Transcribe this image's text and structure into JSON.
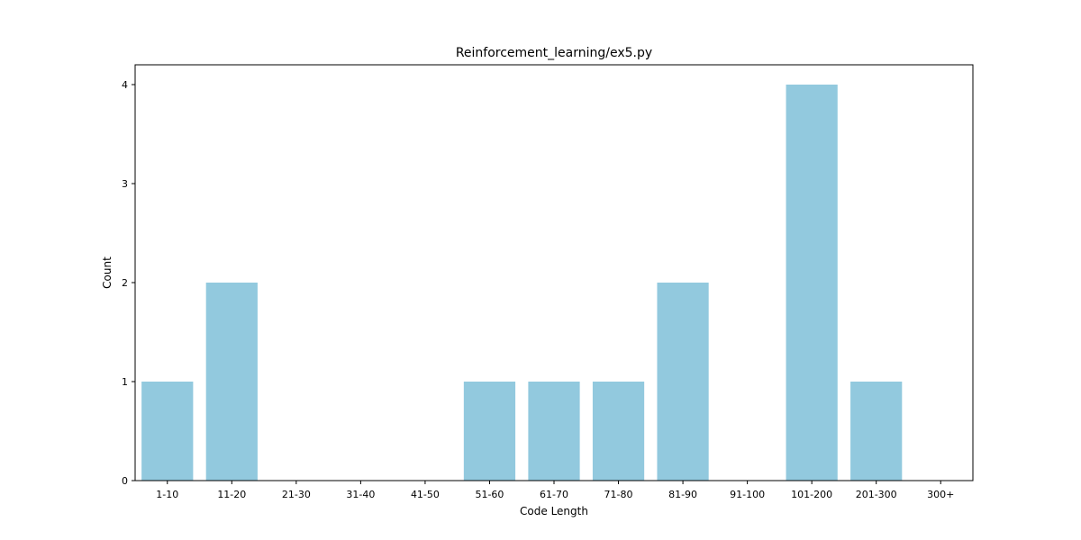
{
  "chart_data": {
    "type": "bar",
    "title": "Reinforcement_learning/ex5.py",
    "xlabel": "Code Length",
    "ylabel": "Count",
    "categories": [
      "1-10",
      "11-20",
      "21-30",
      "31-40",
      "41-50",
      "51-60",
      "61-70",
      "71-80",
      "81-90",
      "91-100",
      "101-200",
      "201-300",
      "300+"
    ],
    "values": [
      1,
      2,
      0,
      0,
      0,
      1,
      1,
      1,
      2,
      0,
      4,
      1,
      0
    ],
    "ylim": [
      0,
      4.2
    ],
    "yticks": [
      0,
      1,
      2,
      3,
      4
    ],
    "grid": false,
    "legend": "none",
    "bar_color": "#92c9de"
  }
}
